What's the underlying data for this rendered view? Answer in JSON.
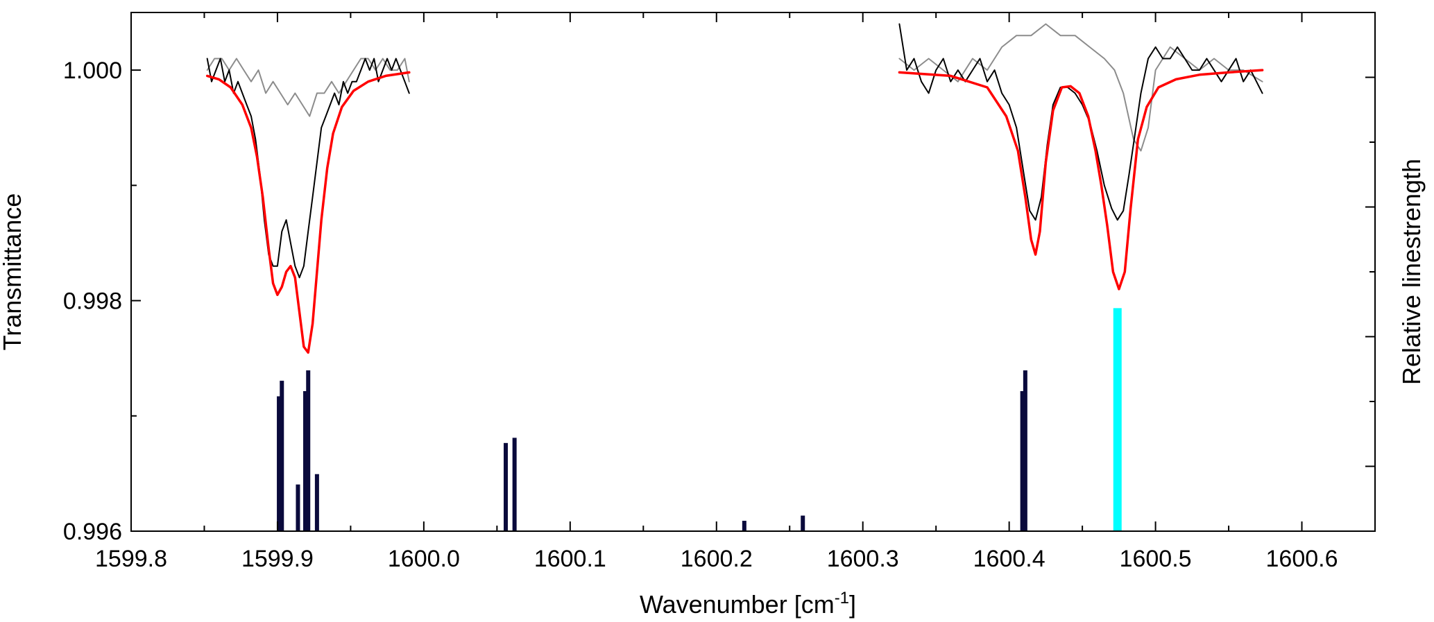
{
  "chart_data": {
    "type": "line",
    "title": "",
    "xlabel": "Wavenumber [cm",
    "xlabel_sup": "-1",
    "xlabel_end": "]",
    "ylabel": "Transmittance",
    "y2label": "Relative linestrength",
    "xlim": [
      1599.8,
      1600.65
    ],
    "ylim": [
      0.996,
      1.0005
    ],
    "y2lim": [
      0,
      1
    ],
    "grid": false,
    "x_ticks": [
      1599.8,
      1599.9,
      1600.0,
      1600.1,
      1600.2,
      1600.3,
      1600.4,
      1600.5,
      1600.6
    ],
    "x_tick_labels": [
      "1599.8",
      "1599.9",
      "1600.0",
      "1600.1",
      "1600.2",
      "1600.3",
      "1600.4",
      "1600.5",
      "1600.6"
    ],
    "y_ticks": [
      0.996,
      0.998,
      1.0
    ],
    "y_tick_labels": [
      "0.996",
      "0.998",
      "1.000"
    ],
    "colors": {
      "measured": "#000000",
      "reference": "#8c8c8c",
      "fit": "#ff0000",
      "sticks": "#0a0a3c",
      "highlight": "#00ffff"
    },
    "series": [
      {
        "role": "measured",
        "x": [
          1599.852,
          1599.855,
          1599.858,
          1599.861,
          1599.864,
          1599.867,
          1599.87,
          1599.873,
          1599.876,
          1599.879,
          1599.882,
          1599.885,
          1599.888,
          1599.891,
          1599.894,
          1599.897,
          1599.9,
          1599.903,
          1599.906,
          1599.909,
          1599.912,
          1599.915,
          1599.918,
          1599.921,
          1599.924,
          1599.927,
          1599.93,
          1599.933,
          1599.936,
          1599.939,
          1599.942,
          1599.945,
          1599.948,
          1599.951,
          1599.954,
          1599.957,
          1599.96,
          1599.963,
          1599.966,
          1599.969,
          1599.972,
          1599.975,
          1599.978,
          1599.981,
          1599.984,
          1599.987,
          1599.99
        ],
        "y": [
          1.0001,
          0.9999,
          1.0,
          1.0001,
          0.9999,
          1.0,
          0.9998,
          0.9999,
          0.9998,
          0.9997,
          0.9996,
          0.9994,
          0.9991,
          0.9987,
          0.9984,
          0.9983,
          0.9983,
          0.9986,
          0.9987,
          0.9985,
          0.9983,
          0.9982,
          0.9983,
          0.9986,
          0.9989,
          0.9992,
          0.9995,
          0.9996,
          0.9997,
          0.9998,
          0.9997,
          0.9999,
          0.9998,
          0.9999,
          0.9999,
          1.0,
          1.0001,
          1.0,
          1.0001,
          0.9999,
          1.0,
          1.0001,
          1.0,
          1.0001,
          1.0,
          0.9999,
          0.9998
        ]
      },
      {
        "role": "reference",
        "x": [
          1599.852,
          1599.857,
          1599.862,
          1599.867,
          1599.872,
          1599.877,
          1599.882,
          1599.887,
          1599.892,
          1599.897,
          1599.902,
          1599.907,
          1599.912,
          1599.917,
          1599.922,
          1599.927,
          1599.932,
          1599.937,
          1599.942,
          1599.947,
          1599.952,
          1599.957,
          1599.962,
          1599.967,
          1599.972,
          1599.977,
          1599.982,
          1599.987,
          1599.99
        ],
        "y": [
          1.0,
          1.0001,
          1.0001,
          1.0,
          1.0001,
          1.0,
          0.9999,
          1.0,
          0.9998,
          0.9999,
          0.9998,
          0.9997,
          0.9998,
          0.9997,
          0.9996,
          0.9998,
          0.9998,
          0.9999,
          0.9998,
          0.9999,
          1.0,
          1.0001,
          1.0001,
          1.0,
          1.0001,
          1.0,
          1.0,
          1.0001,
          0.9999
        ]
      },
      {
        "role": "fit",
        "x": [
          1599.852,
          1599.86,
          1599.868,
          1599.876,
          1599.882,
          1599.886,
          1599.89,
          1599.894,
          1599.897,
          1599.9,
          1599.903,
          1599.906,
          1599.909,
          1599.912,
          1599.915,
          1599.918,
          1599.921,
          1599.924,
          1599.927,
          1599.93,
          1599.934,
          1599.938,
          1599.944,
          1599.952,
          1599.962,
          1599.974,
          1599.99
        ],
        "y": [
          0.99995,
          0.99992,
          0.99985,
          0.9997,
          0.9995,
          0.99925,
          0.9989,
          0.99845,
          0.99815,
          0.99805,
          0.99812,
          0.99825,
          0.9983,
          0.9982,
          0.9979,
          0.9976,
          0.99755,
          0.9978,
          0.99825,
          0.9987,
          0.99915,
          0.99945,
          0.99968,
          0.99982,
          0.9999,
          0.99995,
          0.99998
        ]
      },
      {
        "role": "measured",
        "x": [
          1600.325,
          1600.33,
          1600.335,
          1600.34,
          1600.345,
          1600.35,
          1600.355,
          1600.36,
          1600.365,
          1600.37,
          1600.375,
          1600.38,
          1600.385,
          1600.39,
          1600.395,
          1600.4,
          1600.405,
          1600.41,
          1600.414,
          1600.418,
          1600.422,
          1600.426,
          1600.43,
          1600.435,
          1600.44,
          1600.445,
          1600.45,
          1600.455,
          1600.46,
          1600.465,
          1600.47,
          1600.474,
          1600.478,
          1600.482,
          1600.486,
          1600.49,
          1600.495,
          1600.5,
          1600.505,
          1600.51,
          1600.515,
          1600.52,
          1600.525,
          1600.53,
          1600.535,
          1600.54,
          1600.545,
          1600.55,
          1600.555,
          1600.56,
          1600.565,
          1600.573
        ],
        "y": [
          1.0004,
          1.0,
          1.0001,
          0.9999,
          0.9998,
          1.0,
          1.0001,
          0.9999,
          1.0,
          0.9999,
          1.0,
          1.0001,
          0.9999,
          1.0,
          0.9998,
          0.9997,
          0.9995,
          0.9991,
          0.99878,
          0.9987,
          0.9989,
          0.99935,
          0.9997,
          0.99985,
          0.99985,
          0.9998,
          0.9997,
          0.99955,
          0.9993,
          0.999,
          0.9988,
          0.9987,
          0.99878,
          0.9991,
          0.99945,
          0.9998,
          1.0001,
          1.0002,
          1.0001,
          1.0001,
          1.0002,
          1.0001,
          1.0,
          1.0,
          1.0001,
          1.0,
          0.9999,
          1.0,
          1.0001,
          0.9999,
          1.0,
          0.9998
        ]
      },
      {
        "role": "reference",
        "x": [
          1600.325,
          1600.335,
          1600.345,
          1600.355,
          1600.365,
          1600.375,
          1600.385,
          1600.395,
          1600.405,
          1600.415,
          1600.425,
          1600.435,
          1600.445,
          1600.455,
          1600.465,
          1600.472,
          1600.478,
          1600.485,
          1600.49,
          1600.495,
          1600.5,
          1600.51,
          1600.52,
          1600.53,
          1600.54,
          1600.55,
          1600.56,
          1600.573
        ],
        "y": [
          1.0001,
          1.0,
          1.0001,
          1.0,
          0.9999,
          1.0001,
          1.0,
          1.0002,
          1.0003,
          1.0003,
          1.0004,
          1.0003,
          1.0003,
          1.0002,
          1.0001,
          1.0,
          0.9998,
          0.9994,
          0.9993,
          0.9995,
          1.0,
          1.0002,
          1.0001,
          1.0,
          1.0001,
          1.0,
          1.0,
          0.9999
        ]
      },
      {
        "role": "fit",
        "x": [
          1600.325,
          1600.36,
          1600.385,
          1600.398,
          1600.406,
          1600.411,
          1600.415,
          1600.418,
          1600.421,
          1600.425,
          1600.43,
          1600.436,
          1600.442,
          1600.448,
          1600.454,
          1600.459,
          1600.463,
          1600.467,
          1600.471,
          1600.475,
          1600.479,
          1600.483,
          1600.488,
          1600.494,
          1600.502,
          1600.514,
          1600.53,
          1600.55,
          1600.573
        ],
        "y": [
          0.99998,
          0.99995,
          0.99985,
          0.9996,
          0.9993,
          0.9989,
          0.99853,
          0.9984,
          0.9986,
          0.9992,
          0.99965,
          0.99985,
          0.99986,
          0.9998,
          0.9996,
          0.9993,
          0.999,
          0.99865,
          0.99825,
          0.9981,
          0.99825,
          0.9988,
          0.9994,
          0.99968,
          0.99985,
          0.99992,
          0.99996,
          0.99998,
          1.0
        ]
      }
    ],
    "sticks": {
      "x": [
        1599.901,
        1599.903,
        1599.914,
        1599.919,
        1599.921,
        1599.927,
        1600.056,
        1600.062,
        1600.219,
        1600.259,
        1600.409,
        1600.411
      ],
      "relative_strength": [
        0.26,
        0.29,
        0.09,
        0.27,
        0.31,
        0.11,
        0.17,
        0.18,
        0.02,
        0.03,
        0.27,
        0.31
      ],
      "highlight_x": 1600.474,
      "highlight_strength": 0.43
    }
  }
}
